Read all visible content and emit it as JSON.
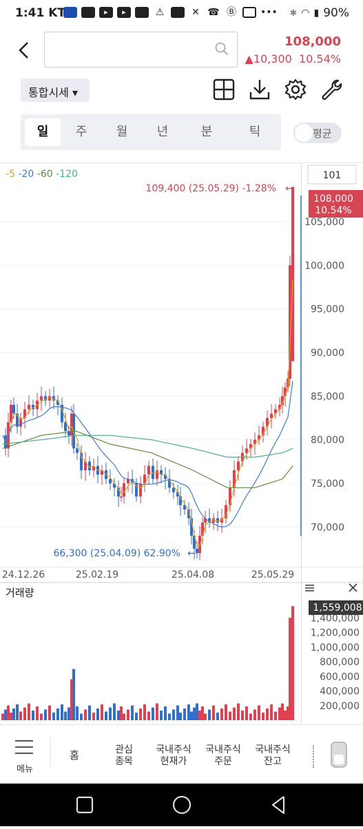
{
  "status_bar": {
    "time": "1:41",
    "carrier": "KT",
    "battery": "90%"
  },
  "header": {
    "price": "108,000",
    "change": "▲10,300",
    "change_pct": "10.54%",
    "combo_label": "통합시세 ▾"
  },
  "tools": [
    "grid-icon",
    "download-icon",
    "settings-icon",
    "wrench-icon"
  ],
  "periods": [
    {
      "label": "일",
      "active": true
    },
    {
      "label": "주",
      "active": false
    },
    {
      "label": "월",
      "active": false
    },
    {
      "label": "년",
      "active": false
    },
    {
      "label": "분",
      "active": false
    },
    {
      "label": "틱",
      "active": false
    }
  ],
  "avg_toggle": "평균",
  "chart_data": {
    "type": "candlestick",
    "ma_legend": [
      "5",
      "20",
      "60",
      "120"
    ],
    "ma_colors": [
      "#e0a020",
      "#3f7bd8",
      "#5e8a3a",
      "#48b08a"
    ],
    "price_axis_input": "101",
    "y_ticks": [
      "105,000",
      "100,000",
      "95,000",
      "90,000",
      "85,000",
      "80,000",
      "75,000",
      "70,000"
    ],
    "y_range": [
      66000,
      111000
    ],
    "x_ticks": [
      "24.12.26",
      "25.02.19",
      "25.04.08",
      "25.05.29"
    ],
    "current_price_label": "108,000",
    "current_pct_label": "10.54%",
    "high_annotation": "109,400 (25.05.29) -1.28%",
    "low_annotation": "66,300 (25.04.09) 62.90%",
    "up_color": "#e04050",
    "down_color": "#2f6fd0",
    "volume": {
      "title": "거래량",
      "current_label": "1,559,008",
      "y_ticks": [
        "1,400,000",
        "1,200,000",
        "1,000,000",
        "800,000",
        "600,000",
        "400,000",
        "200,000"
      ],
      "y_max": 1600000
    }
  },
  "bottom_menu": [
    {
      "label": "메뉴"
    },
    {
      "label": "홈"
    },
    {
      "label": "관심\n종목"
    },
    {
      "label": "국내주식\n현재가"
    },
    {
      "label": "국내주식\n주문"
    },
    {
      "label": "국내주식\n잔고"
    }
  ]
}
